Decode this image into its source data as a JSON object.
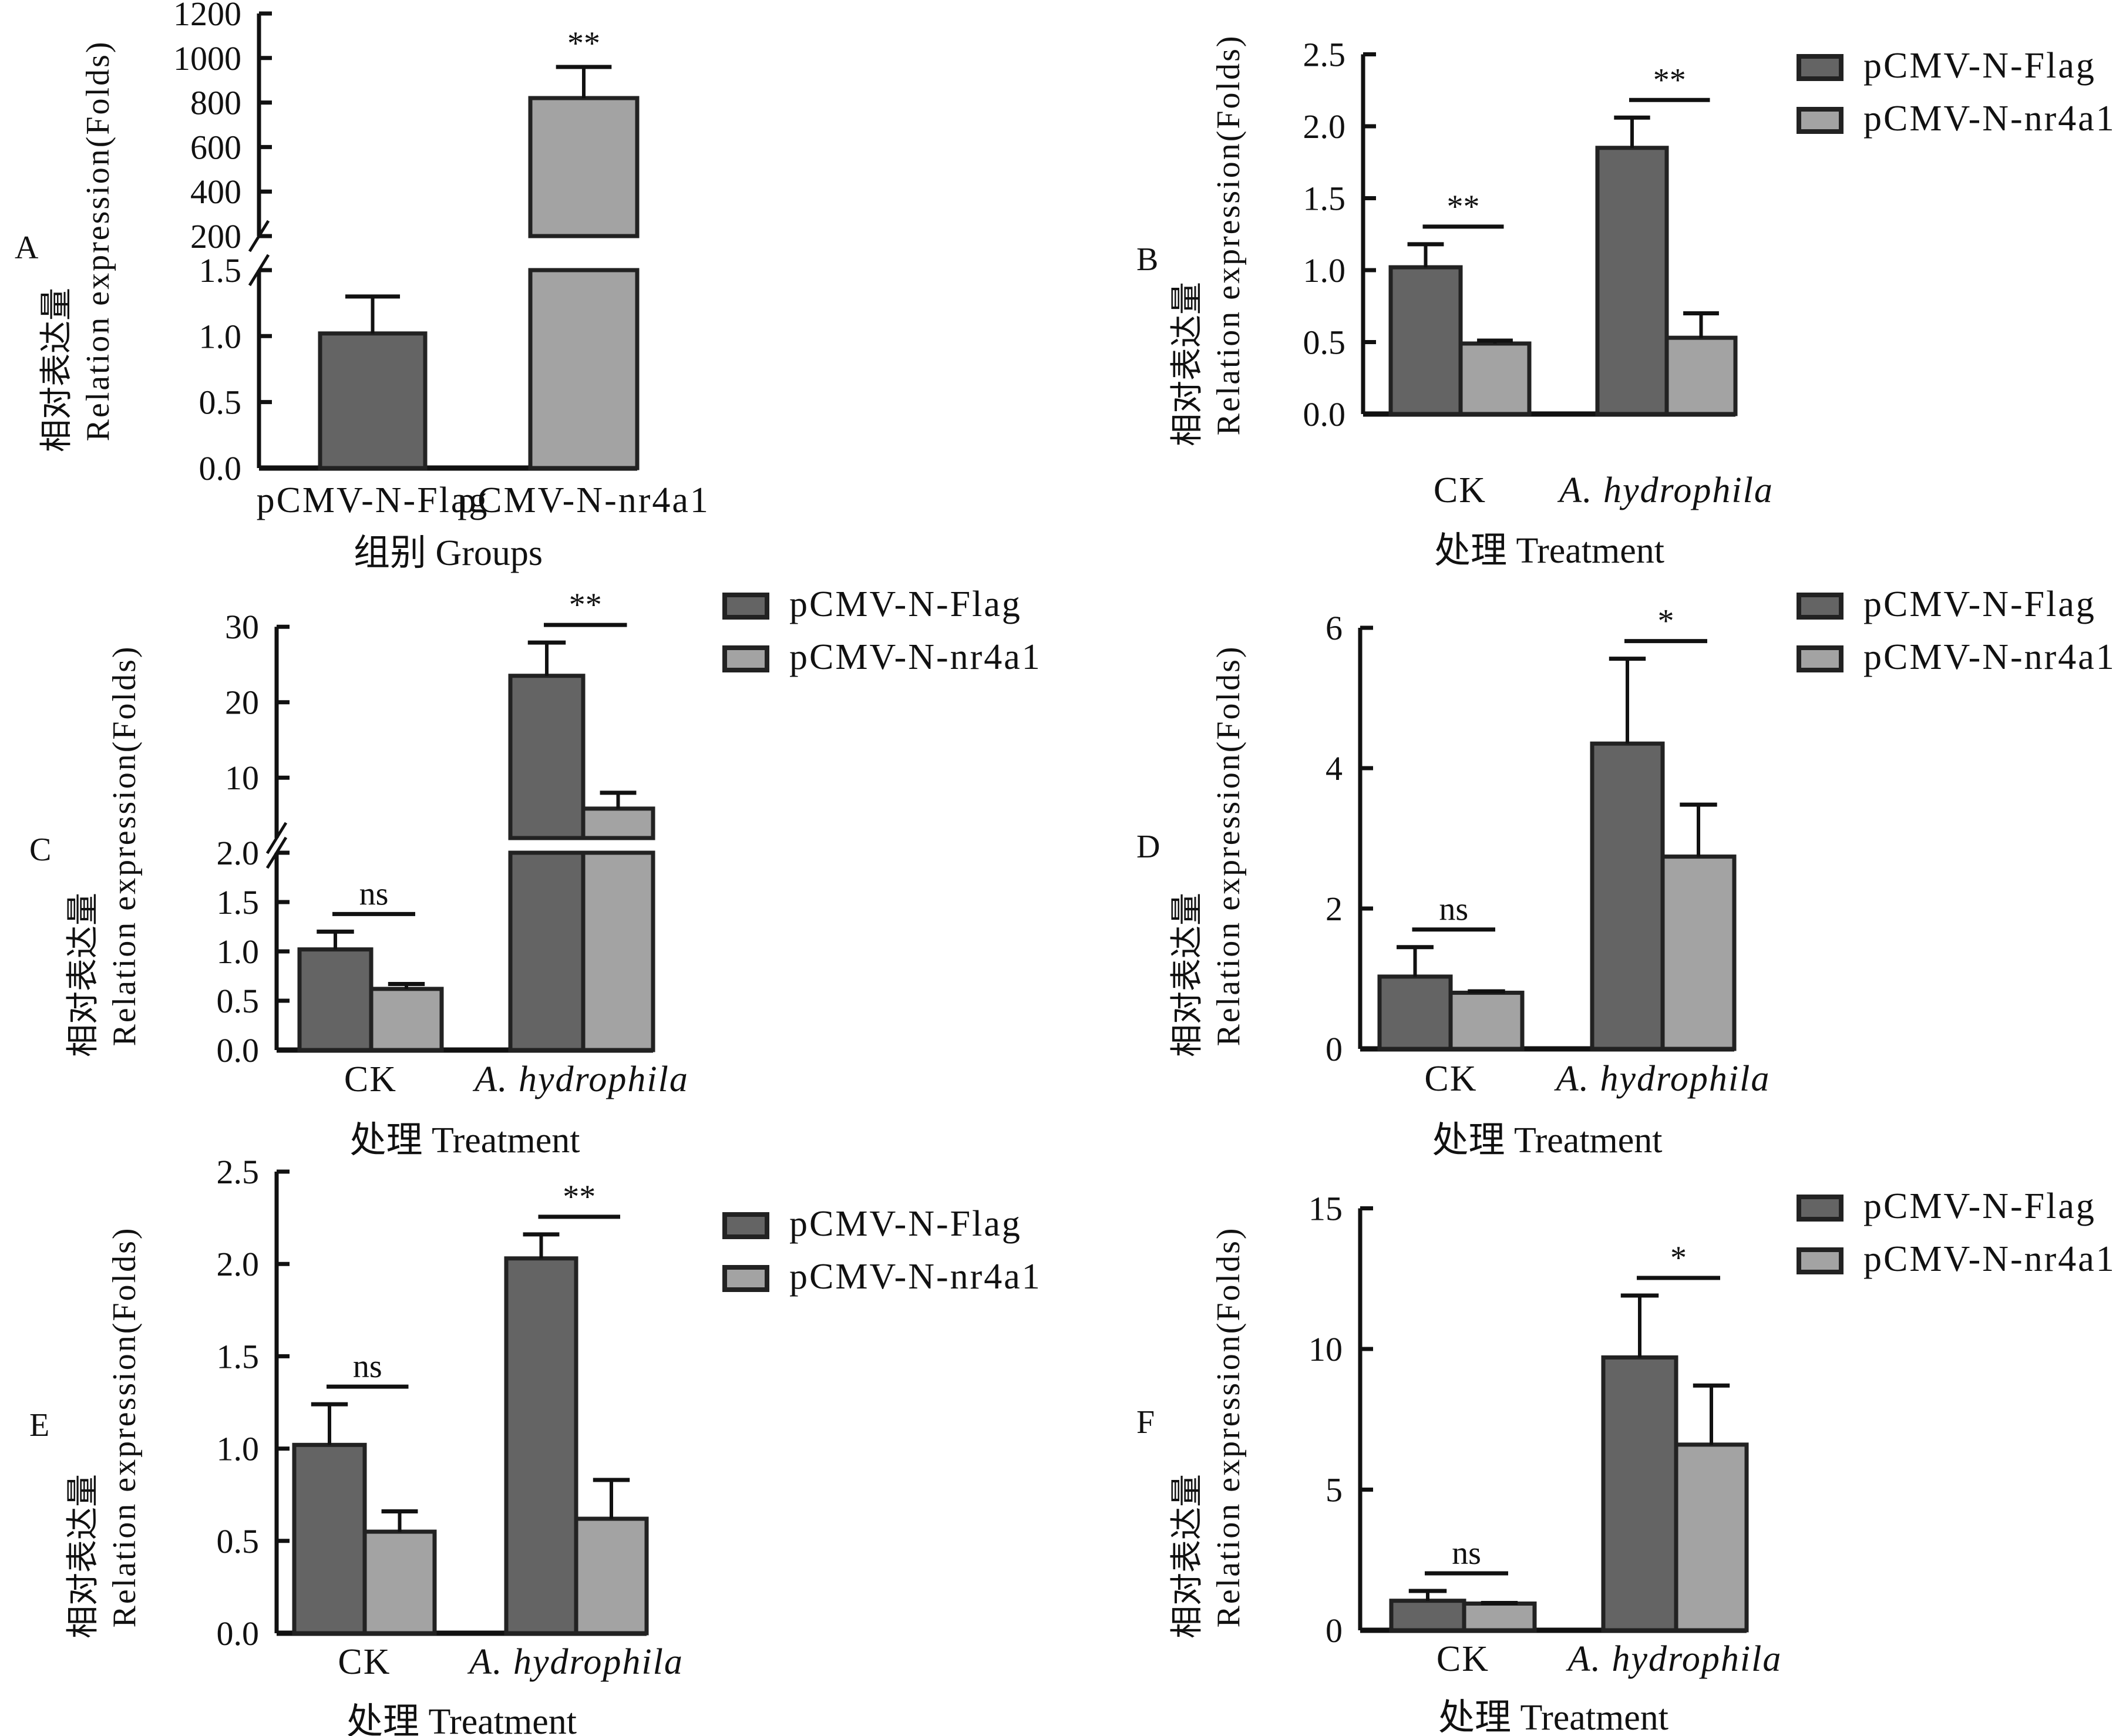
{
  "figure": {
    "ylabel_cn": "相对表达量",
    "ylabel_en": "Relation expression(Folds)",
    "colors": {
      "pCMV-N-Flag": "#646464",
      "pCMV-N-nr4a1": "#a3a3a3",
      "outline": "#222222"
    }
  },
  "chart_data": [
    {
      "panel": "A",
      "type": "bar",
      "title": "",
      "xlabel": "组别 Groups",
      "ylabel": "相对表达量 Relation expression(Folds)",
      "categories": [
        "pCMV-N-Flag",
        "pCMV-N-nr4a1"
      ],
      "values": [
        1.02,
        820
      ],
      "errors_upper": [
        1.3,
        960
      ],
      "broken_axis": {
        "lower_range": [
          0,
          1.5
        ],
        "upper_range": [
          200,
          1200
        ]
      },
      "yticks_lower": [
        "0.0",
        "0.5",
        "1.0",
        "1.5"
      ],
      "yticks_upper": [
        "200",
        "400",
        "600",
        "800",
        "1000",
        "1200"
      ],
      "significance": [
        {
          "category": "pCMV-N-nr4a1",
          "label": "**"
        }
      ],
      "legend": null
    },
    {
      "panel": "B",
      "type": "bar",
      "xlabel": "处理 Treatment",
      "ylabel": "相对表达量 Relation expression(Folds)",
      "categories": [
        "CK",
        "A. hydrophila"
      ],
      "series": [
        {
          "name": "pCMV-N-Flag",
          "values": [
            1.02,
            1.85
          ],
          "errors_upper": [
            1.18,
            2.06
          ]
        },
        {
          "name": "pCMV-N-nr4a1",
          "values": [
            0.49,
            0.53
          ],
          "errors_upper": [
            0.51,
            0.7
          ]
        }
      ],
      "ylim": [
        0,
        2.5
      ],
      "yticks": [
        "0.0",
        "0.5",
        "1.0",
        "1.5",
        "2.0",
        "2.5"
      ],
      "significance": [
        "**",
        "**"
      ],
      "legend": "top-right"
    },
    {
      "panel": "C",
      "type": "bar",
      "xlabel": "处理 Treatment",
      "ylabel": "相对表达量 Relation expression(Folds)",
      "categories": [
        "CK",
        "A. hydrophila"
      ],
      "series": [
        {
          "name": "pCMV-N-Flag",
          "values": [
            1.02,
            23.5
          ],
          "errors_upper": [
            1.2,
            27.9
          ]
        },
        {
          "name": "pCMV-N-nr4a1",
          "values": [
            0.62,
            5.9
          ],
          "errors_upper": [
            0.67,
            8.0
          ]
        }
      ],
      "broken_axis": {
        "lower_range": [
          0,
          2.0
        ],
        "upper_range": [
          2,
          30
        ]
      },
      "yticks_lower": [
        "0.0",
        "0.5",
        "1.0",
        "1.5",
        "2.0"
      ],
      "yticks_upper": [
        "10",
        "20",
        "30"
      ],
      "significance": [
        "ns",
        "**"
      ],
      "legend": "top-right"
    },
    {
      "panel": "D",
      "type": "bar",
      "xlabel": "处理 Treatment",
      "ylabel": "相对表达量 Relation expression(Folds)",
      "categories": [
        "CK",
        "A. hydrophila"
      ],
      "series": [
        {
          "name": "pCMV-N-Flag",
          "values": [
            1.03,
            4.35
          ],
          "errors_upper": [
            1.45,
            5.56
          ]
        },
        {
          "name": "pCMV-N-nr4a1",
          "values": [
            0.8,
            2.74
          ],
          "errors_upper": [
            0.82,
            3.48
          ]
        }
      ],
      "ylim": [
        0,
        6
      ],
      "yticks": [
        "0",
        "2",
        "4",
        "6"
      ],
      "significance": [
        "ns",
        "*"
      ],
      "legend": "top-right"
    },
    {
      "panel": "E",
      "type": "bar",
      "xlabel": "处理 Treatment",
      "ylabel": "相对表达量 Relation expression(Folds)",
      "categories": [
        "CK",
        "A. hydrophila"
      ],
      "series": [
        {
          "name": "pCMV-N-Flag",
          "values": [
            1.02,
            2.03
          ],
          "errors_upper": [
            1.24,
            2.16
          ]
        },
        {
          "name": "pCMV-N-nr4a1",
          "values": [
            0.55,
            0.62
          ],
          "errors_upper": [
            0.66,
            0.83
          ]
        }
      ],
      "ylim": [
        0,
        2.5
      ],
      "yticks": [
        "0.0",
        "0.5",
        "1.0",
        "1.5",
        "2.0",
        "2.5"
      ],
      "significance": [
        "ns",
        "**"
      ],
      "legend": "top-right"
    },
    {
      "panel": "F",
      "type": "bar",
      "xlabel": "处理 Treatment",
      "ylabel": "相对表达量 Relation expression(Folds)",
      "categories": [
        "CK",
        "A. hydrophila"
      ],
      "series": [
        {
          "name": "pCMV-N-Flag",
          "values": [
            1.05,
            9.7
          ],
          "errors_upper": [
            1.4,
            11.9
          ]
        },
        {
          "name": "pCMV-N-nr4a1",
          "values": [
            0.95,
            6.6
          ],
          "errors_upper": [
            0.97,
            8.7
          ]
        }
      ],
      "ylim": [
        0,
        15
      ],
      "yticks": [
        "0",
        "5",
        "10",
        "15"
      ],
      "significance": [
        "ns",
        "*"
      ],
      "legend": "top-right"
    }
  ]
}
